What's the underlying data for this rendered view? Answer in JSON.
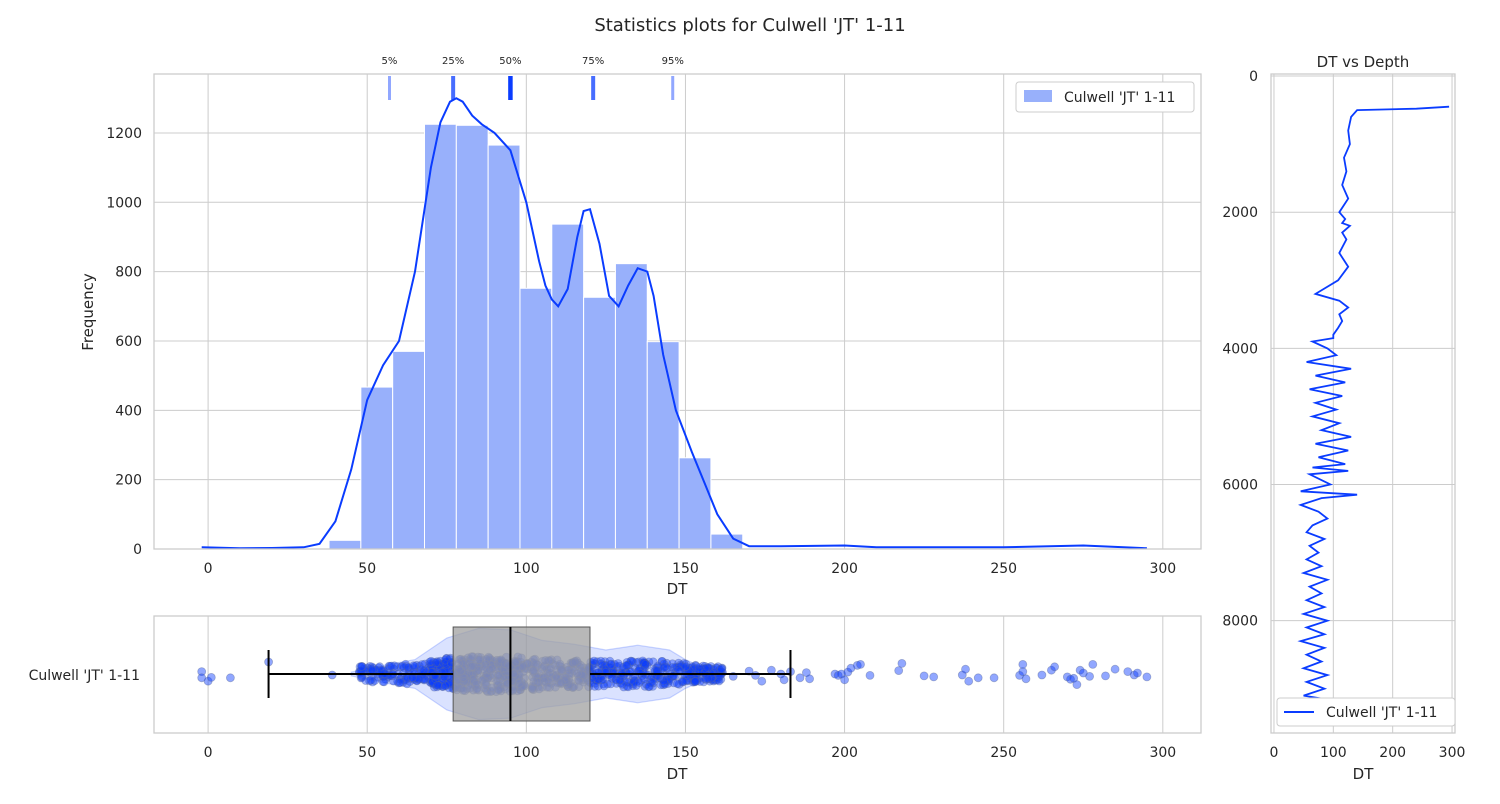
{
  "figure": {
    "title": "Statistics plots for Culwell 'JT' 1-11"
  },
  "colors": {
    "series": "#0a3cff",
    "bar_fill": "#98b0fb",
    "box_fill": "#a0a0a0",
    "grid": "#cccccc"
  },
  "chart_data": [
    {
      "id": "histogram",
      "type": "bar",
      "xlabel": "DT",
      "ylabel": "Frequency",
      "xlim": [
        -17,
        312
      ],
      "ylim": [
        0,
        1370
      ],
      "xticks": [
        0,
        50,
        100,
        150,
        200,
        250,
        300
      ],
      "yticks": [
        0,
        200,
        400,
        600,
        800,
        1000,
        1200
      ],
      "grid": true,
      "legend": {
        "position": "top-right",
        "label": "Culwell 'JT' 1-11"
      },
      "bin_width": 10,
      "bin_starts": [
        38,
        48,
        58,
        68,
        78,
        88,
        98,
        108,
        118,
        128,
        138,
        148,
        158
      ],
      "values": [
        25,
        467,
        570,
        1225,
        1222,
        1165,
        752,
        937,
        726,
        823,
        598,
        263,
        43
      ],
      "kde": {
        "x": [
          -2,
          10,
          20,
          30,
          35,
          40,
          45,
          50,
          55,
          60,
          65,
          70,
          73,
          76,
          78,
          80,
          83,
          86,
          90,
          95,
          100,
          104,
          106,
          108,
          110,
          113,
          116,
          118,
          120,
          123,
          126,
          129,
          132,
          135,
          138,
          140,
          143,
          147,
          152,
          156,
          160,
          165,
          170,
          180,
          200,
          210,
          250,
          275,
          295
        ],
        "y": [
          5,
          2,
          3,
          5,
          15,
          80,
          230,
          430,
          530,
          600,
          800,
          1100,
          1230,
          1290,
          1300,
          1290,
          1250,
          1225,
          1200,
          1150,
          1000,
          830,
          760,
          720,
          700,
          750,
          900,
          975,
          980,
          880,
          730,
          700,
          760,
          810,
          800,
          730,
          560,
          400,
          280,
          190,
          100,
          30,
          8,
          8,
          10,
          5,
          5,
          10,
          2
        ]
      },
      "percentiles": [
        {
          "label": "5%",
          "value": 57
        },
        {
          "label": "25%",
          "value": 77
        },
        {
          "label": "50%",
          "value": 95
        },
        {
          "label": "75%",
          "value": 121
        },
        {
          "label": "95%",
          "value": 146
        }
      ]
    },
    {
      "id": "box-strip",
      "type": "scatter",
      "xlabel": "DT",
      "xlim": [
        -17,
        312
      ],
      "xticks": [
        0,
        50,
        100,
        150,
        200,
        250,
        300
      ],
      "category": "Culwell 'JT' 1-11",
      "box": {
        "whisker_low": 19,
        "q1": 77,
        "median": 95,
        "q3": 120,
        "whisker_high": 183
      },
      "violin": {
        "x": [
          45,
          55,
          65,
          75,
          85,
          95,
          105,
          115,
          125,
          135,
          145,
          150,
          155,
          160
        ],
        "half_width": [
          0.04,
          0.18,
          0.3,
          0.75,
          0.95,
          0.92,
          0.7,
          0.62,
          0.5,
          0.6,
          0.5,
          0.3,
          0.15,
          0.02
        ]
      },
      "outliers": [
        [
          -2,
          -0.05
        ],
        [
          -2,
          0.08
        ],
        [
          0,
          0.15
        ],
        [
          1,
          0.07
        ],
        [
          7,
          0.08
        ],
        [
          19,
          -0.25
        ],
        [
          39,
          0.02
        ],
        [
          165,
          0.05
        ],
        [
          170,
          -0.06
        ],
        [
          172,
          0.03
        ],
        [
          174,
          0.15
        ],
        [
          177,
          -0.08
        ],
        [
          180,
          0.0
        ],
        [
          181,
          0.12
        ],
        [
          183,
          -0.05
        ],
        [
          186,
          0.08
        ],
        [
          188,
          -0.03
        ],
        [
          189,
          0.1
        ],
        [
          197,
          0.0
        ],
        [
          198,
          0.03
        ],
        [
          199,
          0.0
        ],
        [
          200,
          0.12
        ],
        [
          201,
          -0.04
        ],
        [
          202,
          -0.12
        ],
        [
          204,
          -0.18
        ],
        [
          205,
          -0.2
        ],
        [
          208,
          0.03
        ],
        [
          217,
          -0.07
        ],
        [
          218,
          -0.22
        ],
        [
          225,
          0.04
        ],
        [
          228,
          0.06
        ],
        [
          237,
          0.02
        ],
        [
          238,
          -0.1
        ],
        [
          239,
          0.15
        ],
        [
          242,
          0.08
        ],
        [
          247,
          0.08
        ],
        [
          255,
          0.03
        ],
        [
          256,
          -0.05
        ],
        [
          256,
          -0.2
        ],
        [
          257,
          0.1
        ],
        [
          262,
          0.02
        ],
        [
          265,
          -0.08
        ],
        [
          266,
          -0.15
        ],
        [
          270,
          0.06
        ],
        [
          271,
          0.11
        ],
        [
          272,
          0.09
        ],
        [
          273,
          0.22
        ],
        [
          274,
          -0.08
        ],
        [
          275,
          -0.02
        ],
        [
          277,
          0.05
        ],
        [
          278,
          -0.2
        ],
        [
          282,
          0.04
        ],
        [
          285,
          -0.1
        ],
        [
          289,
          -0.05
        ],
        [
          291,
          0.02
        ],
        [
          292,
          -0.02
        ],
        [
          295,
          0.06
        ]
      ]
    },
    {
      "id": "dt-vs-depth",
      "type": "line",
      "title": "DT vs Depth",
      "xlabel": "DT",
      "xlim": [
        -5,
        305
      ],
      "ylim": [
        9650,
        -30
      ],
      "xticks": [
        0,
        100,
        200,
        300
      ],
      "yticks": [
        0,
        2000,
        4000,
        6000,
        8000
      ],
      "grid": true,
      "inverted_y": true,
      "legend": {
        "position": "bottom-right",
        "label": "Culwell 'JT' 1-11"
      },
      "series": [
        {
          "name": "Culwell 'JT' 1-11",
          "x": [
            295,
            240,
            140,
            130,
            125,
            128,
            118,
            122,
            115,
            125,
            110,
            120,
            115,
            128,
            115,
            122,
            110,
            125,
            108,
            70,
            110,
            125,
            110,
            115,
            108,
            100,
            100,
            65,
            90,
            105,
            55,
            130,
            70,
            120,
            60,
            115,
            70,
            105,
            65,
            110,
            80,
            130,
            70,
            125,
            75,
            120,
            65,
            125,
            60,
            95,
            45,
            140,
            80,
            45,
            75,
            90,
            65,
            55,
            85,
            60,
            75,
            55,
            80,
            50,
            90,
            60,
            80,
            55,
            85,
            50,
            90,
            55,
            85,
            45,
            85,
            55,
            80,
            50,
            90,
            55,
            85,
            50,
            85,
            55,
            70
          ],
          "y": [
            450,
            480,
            500,
            600,
            800,
            1000,
            1200,
            1400,
            1600,
            1800,
            2000,
            2100,
            2160,
            2200,
            2300,
            2400,
            2600,
            2800,
            3000,
            3200,
            3300,
            3400,
            3500,
            3600,
            3700,
            3800,
            3850,
            3900,
            4000,
            4100,
            4200,
            4300,
            4400,
            4500,
            4600,
            4700,
            4800,
            4900,
            5000,
            5100,
            5200,
            5300,
            5400,
            5500,
            5600,
            5700,
            5750,
            5800,
            5850,
            6000,
            6100,
            6150,
            6200,
            6300,
            6400,
            6500,
            6600,
            6700,
            6800,
            6900,
            7000,
            7100,
            7200,
            7300,
            7400,
            7500,
            7600,
            7700,
            7800,
            7900,
            8000,
            8100,
            8200,
            8300,
            8400,
            8500,
            8600,
            8700,
            8800,
            8900,
            9000,
            9100,
            9150,
            9200,
            9220
          ]
        }
      ]
    }
  ]
}
